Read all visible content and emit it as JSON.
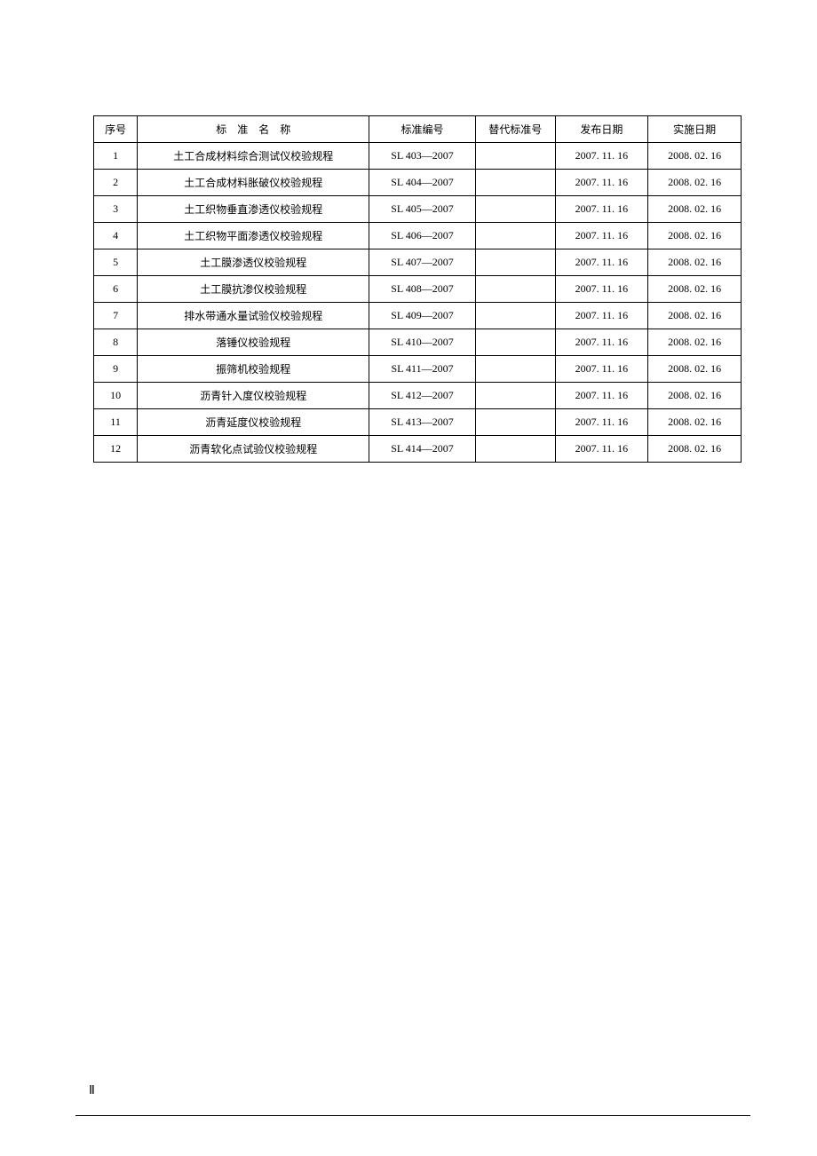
{
  "table": {
    "headers": {
      "seq": "序号",
      "name": "标　准　名　称",
      "code": "标准编号",
      "replace": "替代标准号",
      "pubdate": "发布日期",
      "impdate": "实施日期"
    },
    "rows": [
      {
        "seq": "1",
        "name": "土工合成材料综合测试仪校验规程",
        "code": "SL 403—2007",
        "replace": "",
        "pubdate": "2007. 11. 16",
        "impdate": "2008. 02. 16"
      },
      {
        "seq": "2",
        "name": "土工合成材料胀破仪校验规程",
        "code": "SL 404—2007",
        "replace": "",
        "pubdate": "2007. 11. 16",
        "impdate": "2008. 02. 16"
      },
      {
        "seq": "3",
        "name": "土工织物垂直渗透仪校验规程",
        "code": "SL 405—2007",
        "replace": "",
        "pubdate": "2007. 11. 16",
        "impdate": "2008. 02. 16"
      },
      {
        "seq": "4",
        "name": "土工织物平面渗透仪校验规程",
        "code": "SL 406—2007",
        "replace": "",
        "pubdate": "2007. 11. 16",
        "impdate": "2008. 02. 16"
      },
      {
        "seq": "5",
        "name": "土工膜渗透仪校验规程",
        "code": "SL 407—2007",
        "replace": "",
        "pubdate": "2007. 11. 16",
        "impdate": "2008. 02. 16"
      },
      {
        "seq": "6",
        "name": "土工膜抗渗仪校验规程",
        "code": "SL 408—2007",
        "replace": "",
        "pubdate": "2007. 11. 16",
        "impdate": "2008. 02. 16"
      },
      {
        "seq": "7",
        "name": "排水带通水量试验仪校验规程",
        "code": "SL 409—2007",
        "replace": "",
        "pubdate": "2007. 11. 16",
        "impdate": "2008. 02. 16"
      },
      {
        "seq": "8",
        "name": "落锤仪校验规程",
        "code": "SL 410—2007",
        "replace": "",
        "pubdate": "2007. 11. 16",
        "impdate": "2008. 02. 16"
      },
      {
        "seq": "9",
        "name": "振筛机校验规程",
        "code": "SL 411—2007",
        "replace": "",
        "pubdate": "2007. 11. 16",
        "impdate": "2008. 02. 16"
      },
      {
        "seq": "10",
        "name": "沥青针入度仪校验规程",
        "code": "SL 412—2007",
        "replace": "",
        "pubdate": "2007. 11. 16",
        "impdate": "2008. 02. 16"
      },
      {
        "seq": "11",
        "name": "沥青延度仪校验规程",
        "code": "SL 413—2007",
        "replace": "",
        "pubdate": "2007. 11. 16",
        "impdate": "2008. 02. 16"
      },
      {
        "seq": "12",
        "name": "沥青软化点试验仪校验规程",
        "code": "SL 414—2007",
        "replace": "",
        "pubdate": "2007. 11. 16",
        "impdate": "2008. 02. 16"
      }
    ]
  },
  "pageNumber": "Ⅱ"
}
